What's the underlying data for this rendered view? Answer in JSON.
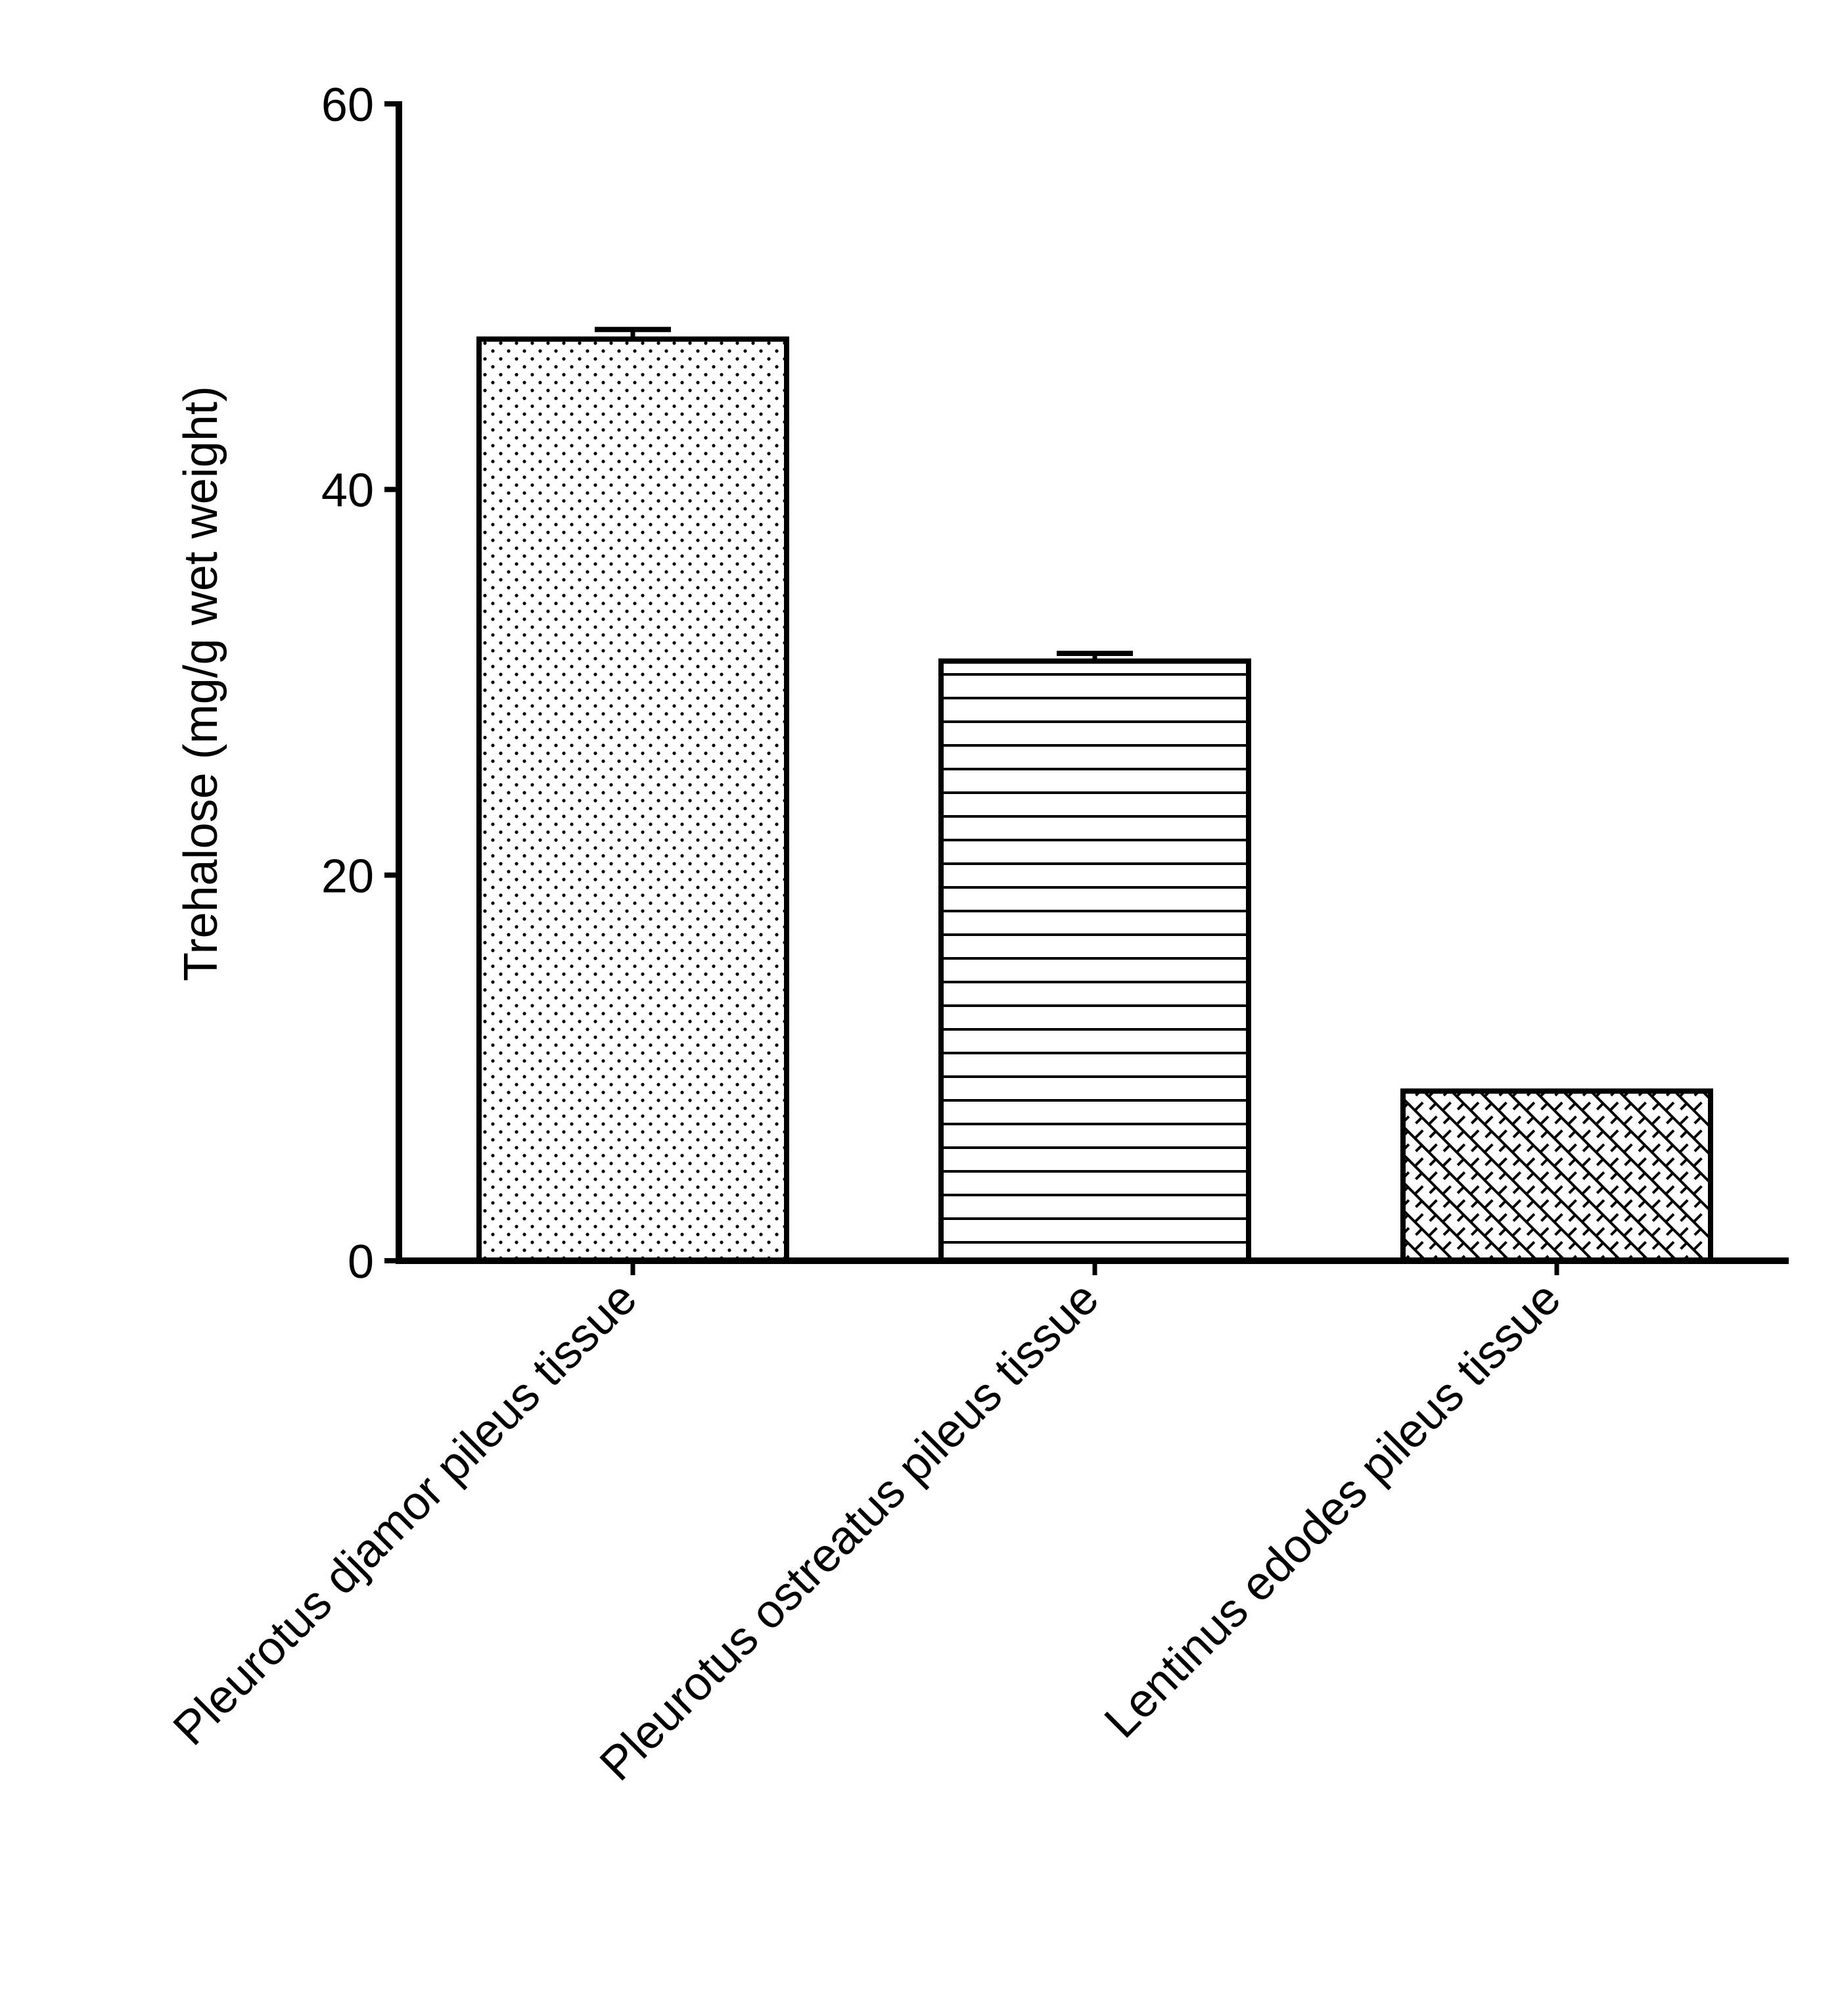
{
  "chart_data": {
    "type": "bar",
    "title": "",
    "xlabel": "",
    "ylabel": "Trehalose (mg/g wet weight)",
    "categories": [
      "Pleurotus djamor pileus tissue",
      "Pleurotus ostreatus pileus tissue",
      "Lentinus edodes pileus tissue"
    ],
    "values": [
      47.8,
      31.1,
      8.8
    ],
    "error_plus": [
      0.5,
      0.4,
      0.0
    ],
    "bar_patterns": [
      "dots",
      "horizontal-lines",
      "crosshatch"
    ],
    "ylim": [
      0,
      60
    ],
    "yticks": [
      0,
      20,
      40,
      60
    ],
    "ytick_labels": [
      "0",
      "20",
      "40",
      "60"
    ],
    "grid": false,
    "legend": "none",
    "colors": {
      "stroke": "#000000",
      "background": "#ffffff"
    }
  }
}
